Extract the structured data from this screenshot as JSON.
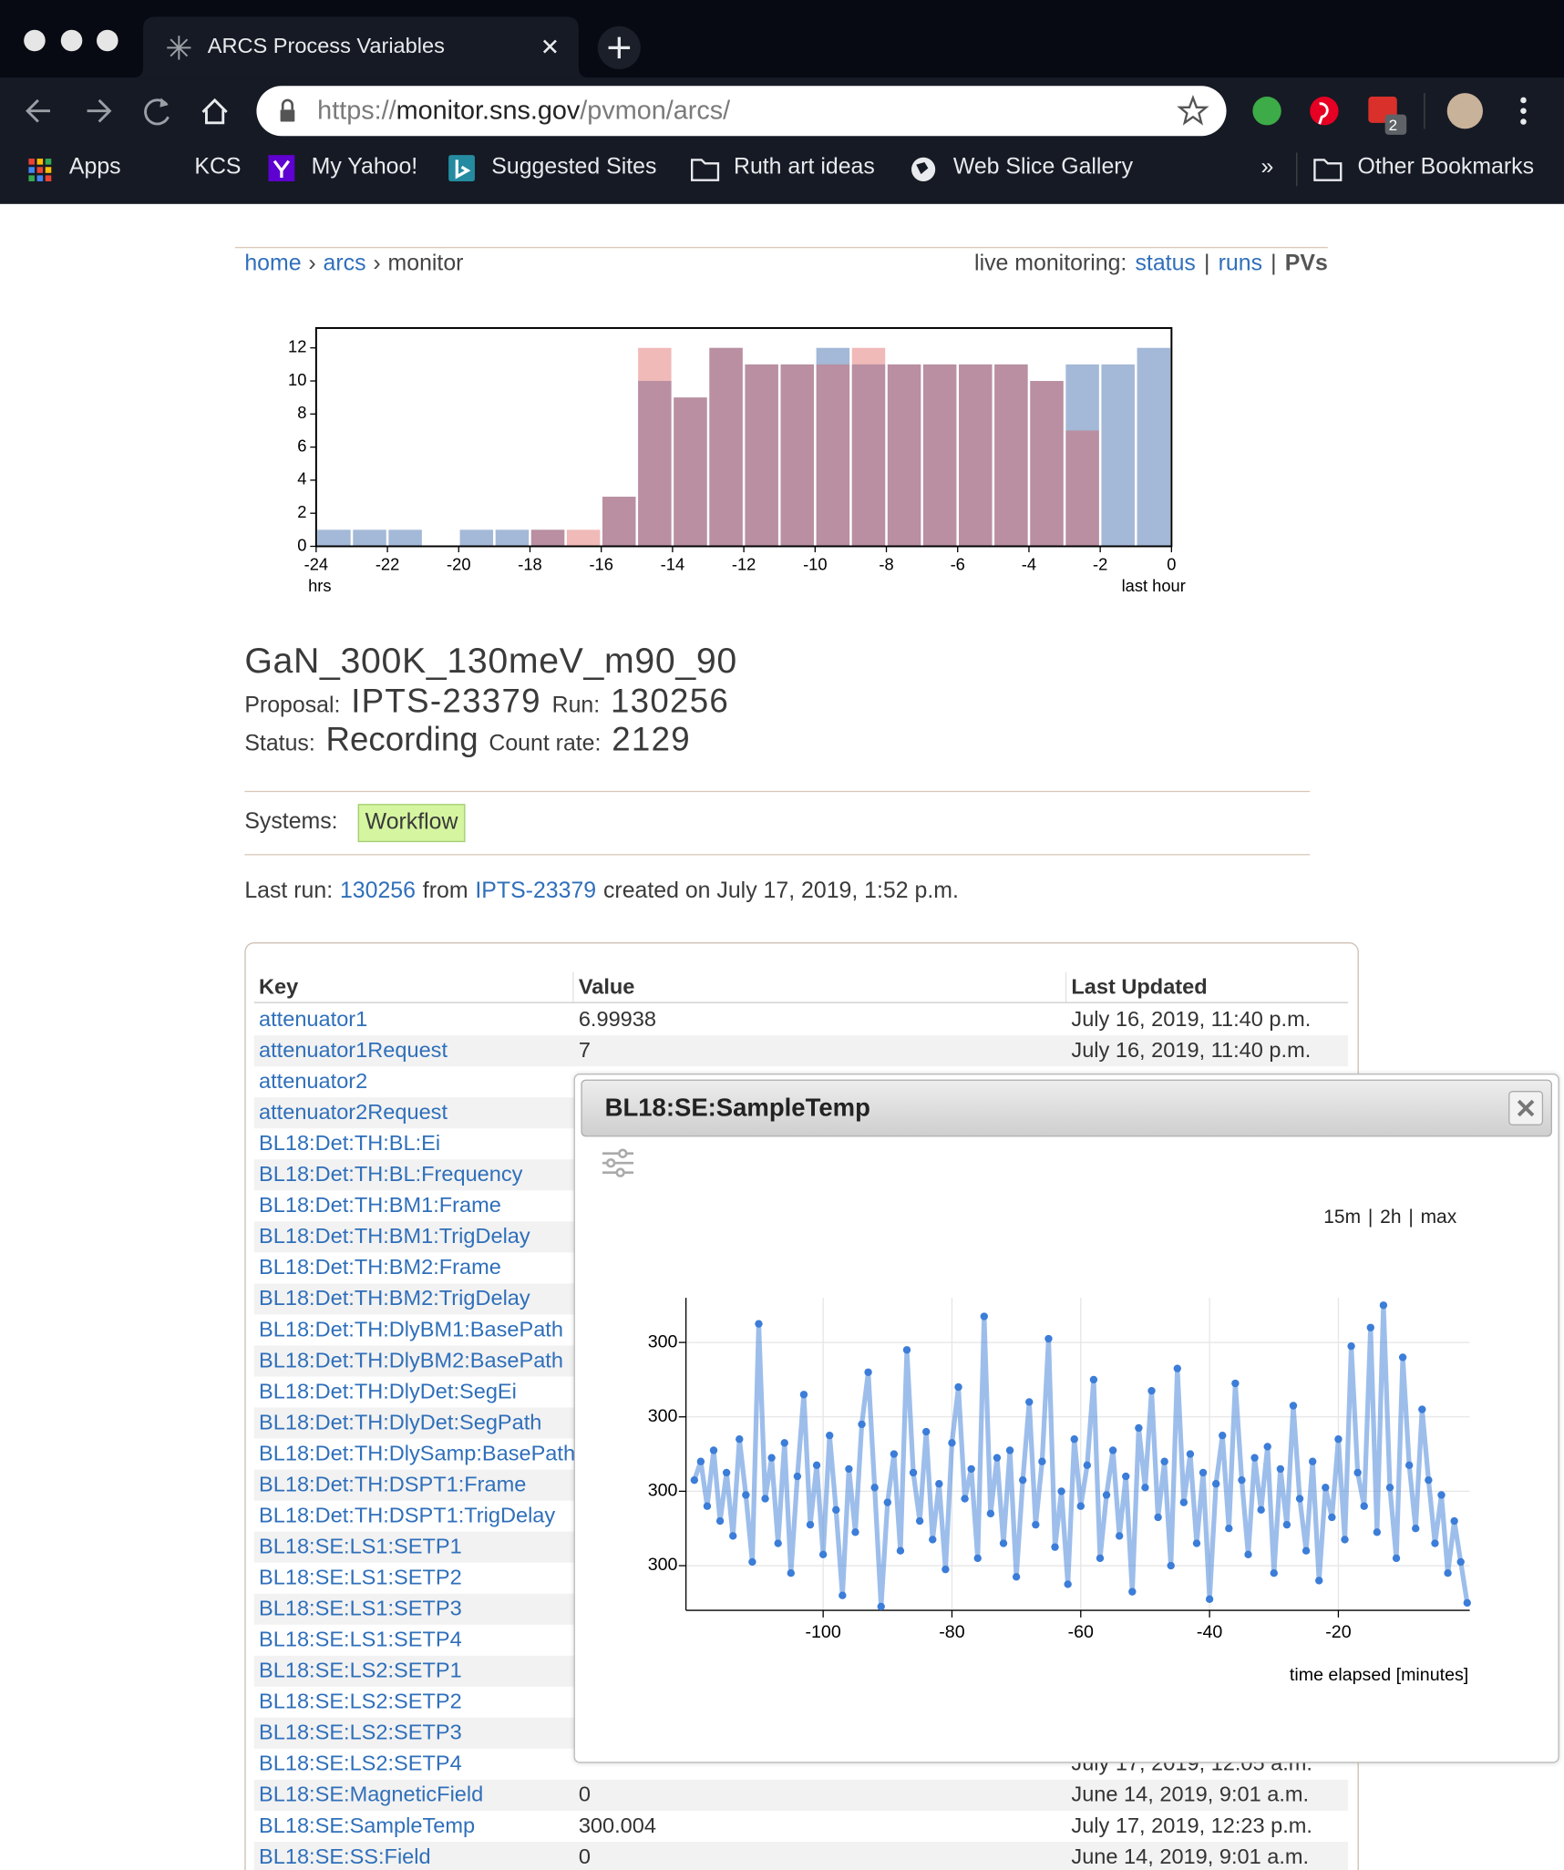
{
  "browser": {
    "tab_title": "ARCS Process Variables",
    "url": {
      "scheme": "https://",
      "host": "monitor.sns.gov",
      "path": "/pvmon/arcs/"
    },
    "badge": "2",
    "bookmarks": [
      "Apps",
      "KCS",
      "My Yahoo!",
      "Suggested Sites",
      "Ruth art ideas",
      "Web Slice Gallery"
    ],
    "overflow": "»",
    "other_bookmarks": "Other Bookmarks"
  },
  "nav": {
    "breadcrumb": [
      "home",
      "arcs",
      "monitor"
    ],
    "breadcrumb_separator": "›",
    "live_label": "live monitoring:",
    "live_links": [
      "status",
      "runs",
      "PVs"
    ],
    "link_separator": "|"
  },
  "chart_data": [
    {
      "type": "histogram",
      "bins": [
        -24,
        -23,
        -22,
        -21,
        -20,
        -19,
        -18,
        -17,
        -16,
        -15,
        -14,
        -13,
        -12,
        -11,
        -10,
        -9,
        -8,
        -7,
        -6,
        -5,
        -4,
        -3,
        -2,
        -1,
        0
      ],
      "series": [
        {
          "color": "#4a72b0",
          "values": [
            1,
            1,
            1,
            0,
            1,
            1,
            1,
            0,
            3,
            10,
            9,
            12,
            11,
            11,
            12,
            11,
            11,
            11,
            11,
            11,
            10,
            11,
            11,
            12
          ]
        },
        {
          "color": "#d9534f",
          "values": [
            0,
            0,
            0,
            0,
            0,
            0,
            1,
            1,
            3,
            12,
            9,
            12,
            11,
            11,
            11,
            12,
            11,
            11,
            11,
            11,
            10,
            7,
            0,
            0
          ]
        }
      ],
      "xlim": [
        -24,
        0
      ],
      "ylim": [
        0,
        13.2
      ],
      "xticks": [
        -24,
        -22,
        -20,
        -18,
        -16,
        -14,
        -12,
        -10,
        -8,
        -6,
        -4,
        -2,
        0
      ],
      "yticks": [
        0,
        2,
        4,
        6,
        8,
        10,
        12
      ],
      "xlabel_left": "hrs",
      "xlabel_right": "last hour"
    },
    {
      "type": "line",
      "title": "BL18:SE:SampleTemp",
      "range_buttons": [
        "15m",
        "2h",
        "max"
      ],
      "range_separator": "|",
      "xlabel": "time elapsed [minutes]",
      "grid": true,
      "x": [
        -120,
        -119,
        -118,
        -117,
        -116,
        -115,
        -114,
        -113,
        -112,
        -111,
        -110,
        -109,
        -108,
        -107,
        -106,
        -105,
        -104,
        -103,
        -102,
        -101,
        -100,
        -99,
        -98,
        -97,
        -96,
        -95,
        -94,
        -93,
        -92,
        -91,
        -90,
        -89,
        -88,
        -87,
        -86,
        -85,
        -84,
        -83,
        -82,
        -81,
        -80,
        -79,
        -78,
        -77,
        -76,
        -75,
        -74,
        -73,
        -72,
        -71,
        -70,
        -69,
        -68,
        -67,
        -66,
        -65,
        -64,
        -63,
        -62,
        -61,
        -60,
        -59,
        -58,
        -57,
        -56,
        -55,
        -54,
        -53,
        -52,
        -51,
        -50,
        -49,
        -48,
        -47,
        -46,
        -45,
        -44,
        -43,
        -42,
        -41,
        -40,
        -39,
        -38,
        -37,
        -36,
        -35,
        -34,
        -33,
        -32,
        -31,
        -30,
        -29,
        -28,
        -27,
        -26,
        -25,
        -24,
        -23,
        -22,
        -21,
        -20,
        -19,
        -18,
        -17,
        -16,
        -15,
        -14,
        -13,
        -12,
        -11,
        -10,
        -9,
        -8,
        -7,
        -6,
        -5,
        -4,
        -3,
        -2,
        -1,
        0
      ],
      "series": [
        {
          "color": "#3b7dd8",
          "values": [
            299.9983,
            299.9988,
            299.9976,
            299.9991,
            299.9972,
            299.9985,
            299.9968,
            299.9994,
            299.9979,
            299.9961,
            300.0025,
            299.9978,
            299.9989,
            299.9966,
            299.9993,
            299.9958,
            299.9984,
            300.0006,
            299.9971,
            299.9987,
            299.9963,
            299.9995,
            299.9975,
            299.9952,
            299.9986,
            299.9969,
            299.9998,
            300.0012,
            299.9981,
            299.9949,
            299.9977,
            299.999,
            299.9964,
            300.0018,
            299.9985,
            299.9972,
            299.9996,
            299.9967,
            299.9982,
            299.9959,
            299.9993,
            300.0008,
            299.9978,
            299.9986,
            299.9962,
            300.0027,
            299.9974,
            299.9989,
            299.9966,
            299.9991,
            299.9957,
            299.9983,
            300.0004,
            299.9971,
            299.9988,
            300.0021,
            299.9965,
            299.998,
            299.9955,
            299.9994,
            299.9976,
            299.9987,
            300.001,
            299.9962,
            299.9979,
            299.9991,
            299.9968,
            299.9984,
            299.9953,
            299.9997,
            299.9981,
            300.0007,
            299.9973,
            299.9988,
            299.996,
            300.0013,
            299.9977,
            299.999,
            299.9966,
            299.9985,
            299.9951,
            299.9982,
            299.9995,
            299.997,
            300.0009,
            299.9983,
            299.9963,
            299.9989,
            299.9975,
            299.9992,
            299.9958,
            299.9986,
            299.9971,
            300.0003,
            299.9978,
            299.9964,
            299.9988,
            299.9956,
            299.9981,
            299.9973,
            299.9994,
            299.9967,
            300.0019,
            299.9985,
            299.9976,
            300.0024,
            299.9969,
            300.003,
            299.9981,
            299.9962,
            300.0016,
            299.9987,
            299.997,
            300.0002,
            299.9983,
            299.9966,
            299.9979,
            299.9958,
            299.9972,
            299.9961,
            299.995
          ]
        }
      ],
      "xlim": [
        -121.3,
        0.4
      ],
      "ylim": [
        299.9948,
        300.0032
      ],
      "xticks": [
        -100,
        -80,
        -60,
        -40,
        -20
      ],
      "yticks": [
        {
          "value": 299.996,
          "label": "300"
        },
        {
          "value": 299.998,
          "label": "300"
        },
        {
          "value": 300.0,
          "label": "300"
        },
        {
          "value": 300.002,
          "label": "300"
        }
      ]
    }
  ],
  "run": {
    "title": "GaN_300K_130meV_m90_90",
    "proposal_label": "Proposal:",
    "proposal": "IPTS-23379",
    "run_label": "Run:",
    "run": "130256",
    "status_label": "Status:",
    "status": "Recording",
    "count_rate_label": "Count rate:",
    "count_rate": "2129"
  },
  "systems": {
    "label": "Systems:",
    "items": [
      "Workflow"
    ]
  },
  "last_run": {
    "label": "Last run:",
    "run": "130256",
    "from": "from",
    "proposal": "IPTS-23379",
    "created": "created on July 17, 2019, 1:52 p.m."
  },
  "table": {
    "headers": [
      "Key",
      "Value",
      "Last Updated"
    ],
    "rows": [
      {
        "key": "attenuator1",
        "value": "6.99938",
        "updated": "July 16, 2019, 11:40 p.m."
      },
      {
        "key": "attenuator1Request",
        "value": "7",
        "updated": "July 16, 2019, 11:40 p.m."
      },
      {
        "key": "attenuator2"
      },
      {
        "key": "attenuator2Request"
      },
      {
        "key": "BL18:Det:TH:BL:Ei"
      },
      {
        "key": "BL18:Det:TH:BL:Frequency"
      },
      {
        "key": "BL18:Det:TH:BM1:Frame"
      },
      {
        "key": "BL18:Det:TH:BM1:TrigDelay"
      },
      {
        "key": "BL18:Det:TH:BM2:Frame"
      },
      {
        "key": "BL18:Det:TH:BM2:TrigDelay"
      },
      {
        "key": "BL18:Det:TH:DlyBM1:BasePath"
      },
      {
        "key": "BL18:Det:TH:DlyBM2:BasePath"
      },
      {
        "key": "BL18:Det:TH:DlyDet:SegEi"
      },
      {
        "key": "BL18:Det:TH:DlyDet:SegPath"
      },
      {
        "key": "BL18:Det:TH:DlySamp:BasePath"
      },
      {
        "key": "BL18:Det:TH:DSPT1:Frame"
      },
      {
        "key": "BL18:Det:TH:DSPT1:TrigDelay"
      },
      {
        "key": "BL18:SE:LS1:SETP1"
      },
      {
        "key": "BL18:SE:LS1:SETP2"
      },
      {
        "key": "BL18:SE:LS1:SETP3"
      },
      {
        "key": "BL18:SE:LS1:SETP4"
      },
      {
        "key": "BL18:SE:LS2:SETP1"
      },
      {
        "key": "BL18:SE:LS2:SETP2"
      },
      {
        "key": "BL18:SE:LS2:SETP3"
      },
      {
        "key": "BL18:SE:LS2:SETP4",
        "updated": "July 17, 2019, 12:05 a.m."
      },
      {
        "key": "BL18:SE:MagneticField",
        "value": "0",
        "updated": "June 14, 2019, 9:01 a.m."
      },
      {
        "key": "BL18:SE:SampleTemp",
        "value": "300.004",
        "updated": "July 17, 2019, 12:23 p.m."
      },
      {
        "key": "BL18:SE:SS:Field",
        "value": "0",
        "updated": "June 14, 2019, 9:01 a.m."
      }
    ]
  }
}
